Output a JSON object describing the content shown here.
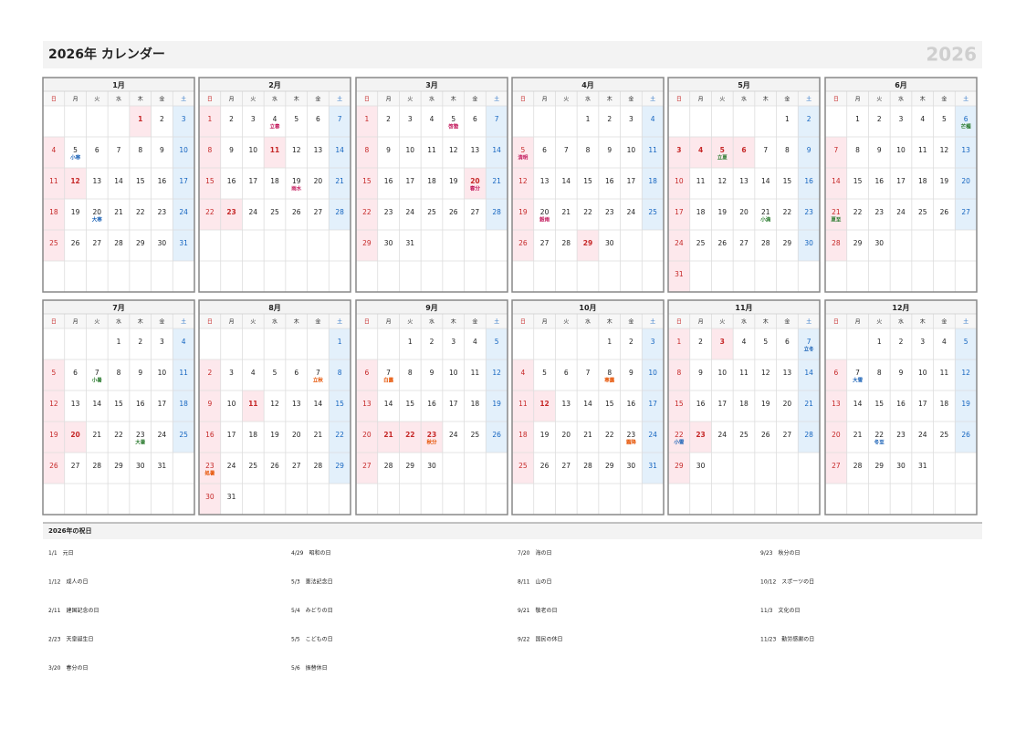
{
  "header": {
    "title": "2026年 カレンダー",
    "year_mark": "2026"
  },
  "weekdays": [
    "日",
    "月",
    "火",
    "水",
    "木",
    "金",
    "土"
  ],
  "months": [
    {
      "name": "1月",
      "weeks": [
        [
          null,
          null,
          null,
          null,
          1,
          2,
          3
        ],
        [
          4,
          5,
          6,
          7,
          8,
          9,
          10
        ],
        [
          11,
          12,
          13,
          14,
          15,
          16,
          17
        ],
        [
          18,
          19,
          20,
          21,
          22,
          23,
          24
        ],
        [
          25,
          26,
          27,
          28,
          29,
          30,
          31
        ]
      ],
      "holidays": [
        1,
        12
      ],
      "labels": [
        {
          "day": 5,
          "text": "小寒",
          "color": "#1c63b7"
        },
        {
          "day": 20,
          "text": "大寒",
          "color": "#1c63b7"
        }
      ]
    },
    {
      "name": "2月",
      "weeks": [
        [
          1,
          2,
          3,
          4,
          5,
          6,
          7
        ],
        [
          8,
          9,
          10,
          11,
          12,
          13,
          14
        ],
        [
          15,
          16,
          17,
          18,
          19,
          20,
          21
        ],
        [
          22,
          23,
          24,
          25,
          26,
          27,
          28
        ]
      ],
      "holidays": [
        11,
        23
      ],
      "labels": [
        {
          "day": 4,
          "text": "立春",
          "color": "#c2185b"
        },
        {
          "day": 19,
          "text": "雨水",
          "color": "#c2185b"
        }
      ]
    },
    {
      "name": "3月",
      "weeks": [
        [
          1,
          2,
          3,
          4,
          5,
          6,
          7
        ],
        [
          8,
          9,
          10,
          11,
          12,
          13,
          14
        ],
        [
          15,
          16,
          17,
          18,
          19,
          20,
          21
        ],
        [
          22,
          23,
          24,
          25,
          26,
          27,
          28
        ],
        [
          29,
          30,
          31
        ]
      ],
      "holidays": [
        20
      ],
      "labels": [
        {
          "day": 5,
          "text": "啓蟄",
          "color": "#c2185b"
        },
        {
          "day": 20,
          "text": "春分",
          "color": "#c2185b"
        }
      ]
    },
    {
      "name": "4月",
      "weeks": [
        [
          null,
          null,
          null,
          1,
          2,
          3,
          4
        ],
        [
          5,
          6,
          7,
          8,
          9,
          10,
          11
        ],
        [
          12,
          13,
          14,
          15,
          16,
          17,
          18
        ],
        [
          19,
          20,
          21,
          22,
          23,
          24,
          25
        ],
        [
          26,
          27,
          28,
          29,
          30
        ]
      ],
      "holidays": [
        29
      ],
      "labels": [
        {
          "day": 5,
          "text": "清明",
          "color": "#c2185b"
        },
        {
          "day": 20,
          "text": "穀雨",
          "color": "#c2185b"
        }
      ]
    },
    {
      "name": "5月",
      "weeks": [
        [
          null,
          null,
          null,
          null,
          null,
          1,
          2
        ],
        [
          3,
          4,
          5,
          6,
          7,
          8,
          9
        ],
        [
          10,
          11,
          12,
          13,
          14,
          15,
          16
        ],
        [
          17,
          18,
          19,
          20,
          21,
          22,
          23
        ],
        [
          24,
          25,
          26,
          27,
          28,
          29,
          30
        ],
        [
          31
        ]
      ],
      "holidays": [
        3,
        4,
        5,
        6
      ],
      "labels": [
        {
          "day": 5,
          "text": "立夏",
          "color": "#2e7d32"
        },
        {
          "day": 21,
          "text": "小満",
          "color": "#2e7d32"
        }
      ]
    },
    {
      "name": "6月",
      "weeks": [
        [
          null,
          1,
          2,
          3,
          4,
          5,
          6
        ],
        [
          7,
          8,
          9,
          10,
          11,
          12,
          13
        ],
        [
          14,
          15,
          16,
          17,
          18,
          19,
          20
        ],
        [
          21,
          22,
          23,
          24,
          25,
          26,
          27
        ],
        [
          28,
          29,
          30
        ]
      ],
      "holidays": [],
      "labels": [
        {
          "day": 6,
          "text": "芒種",
          "color": "#2e7d32"
        },
        {
          "day": 21,
          "text": "夏至",
          "color": "#2e7d32"
        }
      ]
    },
    {
      "name": "7月",
      "weeks": [
        [
          null,
          null,
          null,
          1,
          2,
          3,
          4
        ],
        [
          5,
          6,
          7,
          8,
          9,
          10,
          11
        ],
        [
          12,
          13,
          14,
          15,
          16,
          17,
          18
        ],
        [
          19,
          20,
          21,
          22,
          23,
          24,
          25
        ],
        [
          26,
          27,
          28,
          29,
          30,
          31
        ]
      ],
      "holidays": [
        20
      ],
      "labels": [
        {
          "day": 7,
          "text": "小暑",
          "color": "#2e7d32"
        },
        {
          "day": 23,
          "text": "大暑",
          "color": "#2e7d32"
        }
      ]
    },
    {
      "name": "8月",
      "weeks": [
        [
          null,
          null,
          null,
          null,
          null,
          null,
          1
        ],
        [
          2,
          3,
          4,
          5,
          6,
          7,
          8
        ],
        [
          9,
          10,
          11,
          12,
          13,
          14,
          15
        ],
        [
          16,
          17,
          18,
          19,
          20,
          21,
          22
        ],
        [
          23,
          24,
          25,
          26,
          27,
          28,
          29
        ],
        [
          30,
          31
        ]
      ],
      "holidays": [
        11
      ],
      "labels": [
        {
          "day": 7,
          "text": "立秋",
          "color": "#e65100"
        },
        {
          "day": 23,
          "text": "処暑",
          "color": "#e65100"
        }
      ]
    },
    {
      "name": "9月",
      "weeks": [
        [
          null,
          null,
          1,
          2,
          3,
          4,
          5
        ],
        [
          6,
          7,
          8,
          9,
          10,
          11,
          12
        ],
        [
          13,
          14,
          15,
          16,
          17,
          18,
          19
        ],
        [
          20,
          21,
          22,
          23,
          24,
          25,
          26
        ],
        [
          27,
          28,
          29,
          30
        ]
      ],
      "holidays": [
        21,
        22,
        23
      ],
      "labels": [
        {
          "day": 7,
          "text": "白露",
          "color": "#e65100"
        },
        {
          "day": 23,
          "text": "秋分",
          "color": "#e65100"
        }
      ]
    },
    {
      "name": "10月",
      "weeks": [
        [
          null,
          null,
          null,
          null,
          1,
          2,
          3
        ],
        [
          4,
          5,
          6,
          7,
          8,
          9,
          10
        ],
        [
          11,
          12,
          13,
          14,
          15,
          16,
          17
        ],
        [
          18,
          19,
          20,
          21,
          22,
          23,
          24
        ],
        [
          25,
          26,
          27,
          28,
          29,
          30,
          31
        ]
      ],
      "holidays": [
        12
      ],
      "labels": [
        {
          "day": 8,
          "text": "寒露",
          "color": "#e65100"
        },
        {
          "day": 23,
          "text": "霜降",
          "color": "#e65100"
        }
      ]
    },
    {
      "name": "11月",
      "weeks": [
        [
          1,
          2,
          3,
          4,
          5,
          6,
          7
        ],
        [
          8,
          9,
          10,
          11,
          12,
          13,
          14
        ],
        [
          15,
          16,
          17,
          18,
          19,
          20,
          21
        ],
        [
          22,
          23,
          24,
          25,
          26,
          27,
          28
        ],
        [
          29,
          30
        ]
      ],
      "holidays": [
        3,
        23
      ],
      "labels": [
        {
          "day": 7,
          "text": "立冬",
          "color": "#1c63b7"
        },
        {
          "day": 22,
          "text": "小雪",
          "color": "#1c63b7"
        }
      ]
    },
    {
      "name": "12月",
      "weeks": [
        [
          null,
          null,
          1,
          2,
          3,
          4,
          5
        ],
        [
          6,
          7,
          8,
          9,
          10,
          11,
          12
        ],
        [
          13,
          14,
          15,
          16,
          17,
          18,
          19
        ],
        [
          20,
          21,
          22,
          23,
          24,
          25,
          26
        ],
        [
          27,
          28,
          29,
          30,
          31
        ]
      ],
      "holidays": [],
      "labels": [
        {
          "day": 7,
          "text": "大雪",
          "color": "#1c63b7"
        },
        {
          "day": 22,
          "text": "冬至",
          "color": "#1c63b7"
        }
      ]
    }
  ],
  "holiday_list": {
    "title": "2026年の祝日",
    "columns": [
      [
        {
          "date": "1/1",
          "name": "元日"
        },
        {
          "date": "1/12",
          "name": "成人の日"
        },
        {
          "date": "2/11",
          "name": "建国記念の日"
        },
        {
          "date": "2/23",
          "name": "天皇誕生日"
        },
        {
          "date": "3/20",
          "name": "春分の日"
        }
      ],
      [
        {
          "date": "4/29",
          "name": "昭和の日"
        },
        {
          "date": "5/3",
          "name": "憲法記念日"
        },
        {
          "date": "5/4",
          "name": "みどりの日"
        },
        {
          "date": "5/5",
          "name": "こどもの日"
        },
        {
          "date": "5/6",
          "name": "振替休日"
        }
      ],
      [
        {
          "date": "7/20",
          "name": "海の日"
        },
        {
          "date": "8/11",
          "name": "山の日"
        },
        {
          "date": "9/21",
          "name": "敬老の日"
        },
        {
          "date": "9/22",
          "name": "国民の休日"
        }
      ],
      [
        {
          "date": "9/23",
          "name": "秋分の日"
        },
        {
          "date": "10/12",
          "name": "スポーツの日"
        },
        {
          "date": "11/3",
          "name": "文化の日"
        },
        {
          "date": "11/23",
          "name": "勤労感謝の日"
        }
      ]
    ]
  }
}
